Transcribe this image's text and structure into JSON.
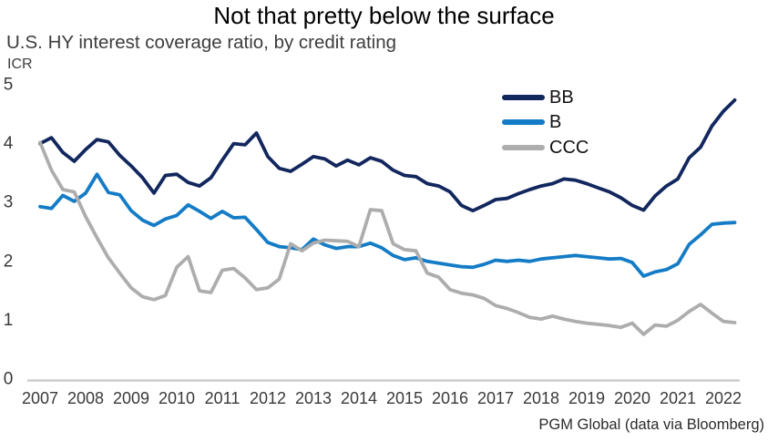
{
  "chart_data": {
    "type": "line",
    "title": "Not that pretty below the surface",
    "subtitle": "U.S. HY interest coverage ratio, by credit rating",
    "ylabel": "ICR",
    "xlabel": "",
    "x_start": "2007Q1",
    "x_end": "2022Q2",
    "x_frequency": "quarterly",
    "x_tick_labels": [
      "2007",
      "2008",
      "2009",
      "2010",
      "2011",
      "2012",
      "2013",
      "2014",
      "2015",
      "2016",
      "2017",
      "2018",
      "2019",
      "2020",
      "2021",
      "2022"
    ],
    "y_ticks": [
      0,
      1,
      2,
      3,
      4,
      5
    ],
    "ylim": [
      0,
      5
    ],
    "grid": false,
    "legend_position": "upper-right-inside",
    "series": [
      {
        "name": "BB",
        "color": "#12275E",
        "values": [
          4.0,
          4.1,
          3.85,
          3.7,
          3.9,
          4.07,
          4.03,
          3.8,
          3.62,
          3.42,
          3.16,
          3.46,
          3.48,
          3.34,
          3.28,
          3.42,
          3.72,
          4.0,
          3.98,
          4.18,
          3.78,
          3.58,
          3.53,
          3.65,
          3.78,
          3.74,
          3.62,
          3.72,
          3.64,
          3.76,
          3.7,
          3.55,
          3.46,
          3.44,
          3.32,
          3.28,
          3.18,
          2.95,
          2.86,
          2.95,
          3.05,
          3.07,
          3.15,
          3.22,
          3.28,
          3.32,
          3.4,
          3.38,
          3.32,
          3.25,
          3.18,
          3.08,
          2.95,
          2.87,
          3.11,
          3.28,
          3.4,
          3.76,
          3.94,
          4.3,
          4.55,
          4.74
        ]
      },
      {
        "name": "B",
        "color": "#147CC6",
        "values": [
          2.93,
          2.9,
          3.12,
          3.02,
          3.16,
          3.48,
          3.17,
          3.13,
          2.86,
          2.7,
          2.61,
          2.72,
          2.78,
          2.96,
          2.85,
          2.73,
          2.85,
          2.74,
          2.75,
          2.54,
          2.32,
          2.25,
          2.23,
          2.2,
          2.38,
          2.28,
          2.22,
          2.25,
          2.25,
          2.31,
          2.23,
          2.1,
          2.03,
          2.06,
          2.0,
          1.97,
          1.94,
          1.91,
          1.9,
          1.95,
          2.02,
          2.0,
          2.02,
          2.0,
          2.04,
          2.06,
          2.08,
          2.1,
          2.08,
          2.06,
          2.04,
          2.05,
          1.98,
          1.75,
          1.82,
          1.86,
          1.96,
          2.29,
          2.45,
          2.63,
          2.65,
          2.66
        ]
      },
      {
        "name": "CCC",
        "color": "#ADADAD",
        "values": [
          4.02,
          3.55,
          3.22,
          3.18,
          2.76,
          2.4,
          2.06,
          1.8,
          1.55,
          1.4,
          1.35,
          1.42,
          1.9,
          2.08,
          1.5,
          1.47,
          1.85,
          1.88,
          1.72,
          1.52,
          1.55,
          1.7,
          2.3,
          2.18,
          2.31,
          2.36,
          2.35,
          2.34,
          2.25,
          2.88,
          2.86,
          2.3,
          2.2,
          2.18,
          1.8,
          1.73,
          1.52,
          1.46,
          1.43,
          1.37,
          1.25,
          1.2,
          1.13,
          1.05,
          1.02,
          1.07,
          1.02,
          0.98,
          0.95,
          0.93,
          0.91,
          0.88,
          0.95,
          0.76,
          0.92,
          0.9,
          1.0,
          1.15,
          1.27,
          1.12,
          0.98,
          0.96
        ]
      }
    ]
  },
  "legend": {
    "items": [
      {
        "label": "BB"
      },
      {
        "label": "B"
      },
      {
        "label": "CCC"
      }
    ]
  },
  "footer": {
    "attribution": "PGM Global (data via Bloomberg)"
  },
  "colors": {
    "axis_line": "#CCCCCC",
    "tick_text": "#3A3A3A",
    "title_text": "#000000",
    "subtitle_text": "#3D3D3D"
  }
}
